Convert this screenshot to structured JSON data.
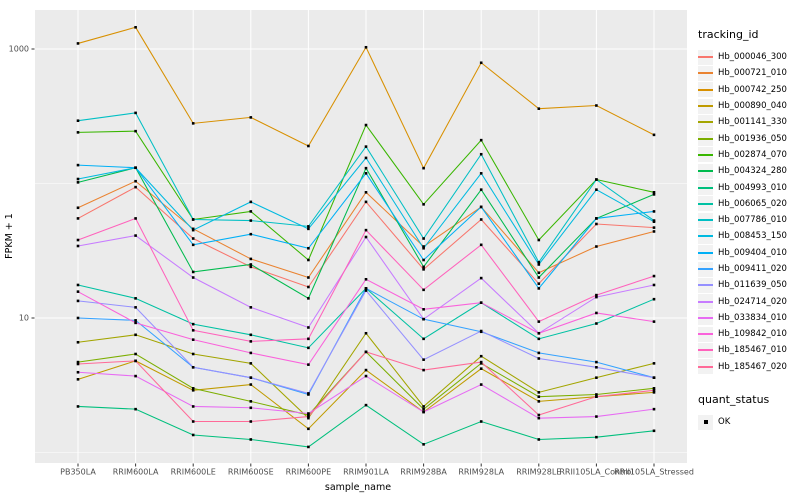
{
  "figure": {
    "background": "#FFFFFF",
    "panel_background": "#EBEBEB",
    "grid_color": "#FFFFFF",
    "axis_text_color": "#4D4D4D",
    "tick_color": "#333333",
    "point_color": "#000000",
    "legend_key_fill": "#F2F2F2"
  },
  "axes": {
    "y_label": "FPKM + 1",
    "x_label": "sample_name",
    "y_ticks": [
      {
        "label": "1000",
        "value": 1000
      },
      {
        "label": "10",
        "value": 10
      }
    ],
    "y_minor": [
      100,
      1
    ]
  },
  "legend": {
    "tracking_title": "tracking_id",
    "quant_title": "quant_status",
    "quant_items": [
      {
        "label": "OK"
      }
    ]
  },
  "chart_data": {
    "type": "line",
    "title": "",
    "xlabel": "sample_name",
    "ylabel": "FPKM + 1",
    "y_scale": "log10",
    "ylim": [
      1,
      1600
    ],
    "grid": true,
    "legend_position": "right",
    "marker": "black-square",
    "quant_status": "OK",
    "categories": [
      "PB350LA",
      "RRIM600LA",
      "RRIM600LE",
      "RRIM600SE",
      "RRIM600PE",
      "RRIM901LA",
      "RRIM928BA",
      "RRIM928LA",
      "RRIM928LE",
      "RRII105LA_Control",
      "RRII105LA_Stressed"
    ],
    "series": [
      {
        "name": "Hb_000046_300",
        "color": "#F8766D",
        "values": [
          55,
          94,
          39,
          24,
          17,
          73,
          23,
          54,
          18,
          50,
          47
        ]
      },
      {
        "name": "Hb_000721_010",
        "color": "#EA8331",
        "values": [
          66,
          104,
          46,
          27.5,
          20,
          86,
          34,
          67,
          21.7,
          34,
          44
        ]
      },
      {
        "name": "Hb_000742_250",
        "color": "#D89000",
        "values": [
          1100,
          1450,
          280,
          310,
          190,
          1030,
          130,
          790,
          360,
          380,
          230
        ]
      },
      {
        "name": "Hb_000890_040",
        "color": "#C09B00",
        "values": [
          3.5,
          4.8,
          2.9,
          3.2,
          1.5,
          4.1,
          2.0,
          4.2,
          2.4,
          2.6,
          2.8
        ]
      },
      {
        "name": "Hb_001141_330",
        "color": "#A3A500",
        "values": [
          6.6,
          7.5,
          5.4,
          4.6,
          1.8,
          7.7,
          2.2,
          5.2,
          2.8,
          3.6,
          4.6
        ]
      },
      {
        "name": "Hb_001936_050",
        "color": "#7CAE00",
        "values": [
          4.7,
          5.4,
          3.0,
          2.4,
          1.9,
          5.6,
          2.1,
          4.6,
          2.6,
          2.7,
          3.0
        ]
      },
      {
        "name": "Hb_002874_070",
        "color": "#39B600",
        "values": [
          240,
          245,
          54,
          62,
          27,
          272,
          70,
          210,
          38,
          107,
          86
        ]
      },
      {
        "name": "Hb_004324_280",
        "color": "#00BB4E",
        "values": [
          102,
          131,
          22,
          25,
          14,
          130,
          24,
          90,
          20,
          55,
          83
        ]
      },
      {
        "name": "Hb_004993_010",
        "color": "#00BF7D",
        "values": [
          2.2,
          2.1,
          1.35,
          1.25,
          1.1,
          2.25,
          1.15,
          1.7,
          1.25,
          1.3,
          1.45
        ]
      },
      {
        "name": "Hb_006065_020",
        "color": "#00C1A3",
        "values": [
          17.6,
          14,
          9,
          7.5,
          6,
          16.6,
          7,
          13,
          7,
          9.1,
          13.8
        ]
      },
      {
        "name": "Hb_007786_010",
        "color": "#00BFC4",
        "values": [
          293,
          335,
          54,
          53,
          48,
          188,
          39,
          165,
          26,
          107,
          53
        ]
      },
      {
        "name": "Hb_008453_150",
        "color": "#00BAE0",
        "values": [
          108,
          131,
          45,
          73,
          46,
          155,
          33,
          119,
          25,
          90,
          52
        ]
      },
      {
        "name": "Hb_009404_010",
        "color": "#00B0F6",
        "values": [
          137,
          131,
          35,
          42,
          33,
          119,
          27,
          67,
          16.6,
          55,
          62
        ]
      },
      {
        "name": "Hb_009411_020",
        "color": "#35A2FF",
        "values": [
          10,
          9.6,
          4.3,
          3.6,
          2.7,
          16.6,
          9.8,
          7.9,
          5.5,
          4.7,
          3.6
        ]
      },
      {
        "name": "Hb_011639_050",
        "color": "#9590FF",
        "values": [
          13.4,
          12,
          4.3,
          3.6,
          2.75,
          16,
          4.9,
          8,
          5,
          4.3,
          3.6
        ]
      },
      {
        "name": "Hb_024714_020",
        "color": "#C77CFF",
        "values": [
          34.3,
          41,
          20,
          12,
          8.5,
          40,
          9.8,
          19.8,
          7.7,
          14.3,
          17.6
        ]
      },
      {
        "name": "Hb_033834_010",
        "color": "#E76BF3",
        "values": [
          3.95,
          3.7,
          2.2,
          2.15,
          1.95,
          3.7,
          2.0,
          3.2,
          1.8,
          1.85,
          2.1
        ]
      },
      {
        "name": "Hb_109842_010",
        "color": "#FA62DB",
        "values": [
          15.7,
          9.2,
          6.9,
          5.5,
          4.5,
          19.4,
          11.6,
          13,
          7.7,
          10.9,
          9.4
        ]
      },
      {
        "name": "Hb_185467_010",
        "color": "#FF62BC",
        "values": [
          38,
          55,
          8.1,
          6.7,
          7.0,
          45,
          16.2,
          35,
          9.4,
          14.8,
          20.5
        ]
      },
      {
        "name": "Hb_185467_020",
        "color": "#FF6A98",
        "values": [
          4.55,
          4.8,
          1.7,
          1.7,
          1.85,
          5.6,
          4.1,
          4.7,
          1.9,
          2.6,
          2.9
        ]
      }
    ]
  }
}
